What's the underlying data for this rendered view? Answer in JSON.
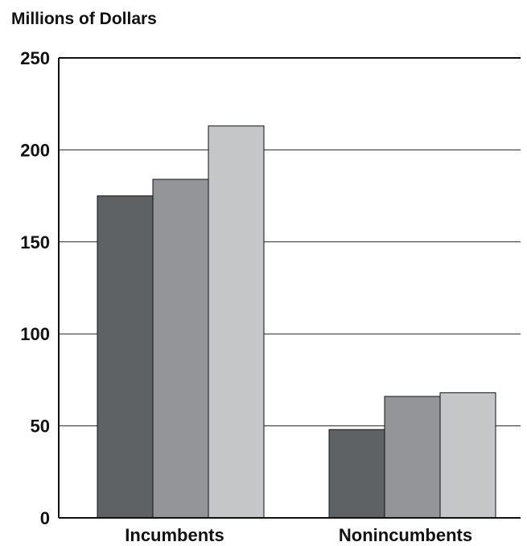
{
  "chart_data": {
    "type": "bar",
    "title": "Millions of Dollars",
    "categories": [
      "Incumbents",
      "Nonincumbents"
    ],
    "series": [
      {
        "values": [
          175,
          48
        ],
        "color": "#5f6264"
      },
      {
        "values": [
          184,
          66
        ],
        "color": "#939598"
      },
      {
        "values": [
          213,
          68
        ],
        "color": "#c4c6c8"
      }
    ],
    "yticks": [
      "0",
      "50",
      "100",
      "150",
      "200",
      "250"
    ],
    "ylim": [
      0,
      250
    ],
    "grid": true
  }
}
